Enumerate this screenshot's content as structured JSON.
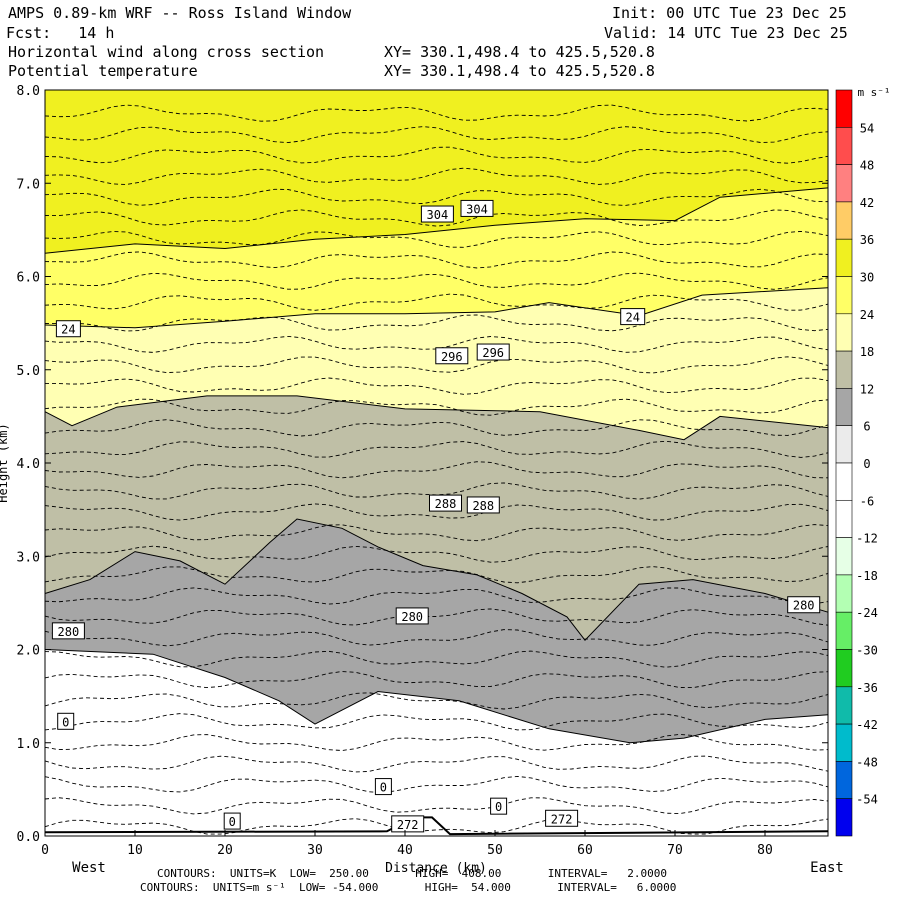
{
  "header": {
    "title": "AMPS 0.89-km WRF -- Ross Island Window",
    "init": "Init: 00 UTC Tue 23 Dec 25",
    "fcst": "Fcst:   14 h",
    "valid": "Valid: 14 UTC Tue 23 Dec 25",
    "field1": "Horizontal wind along cross section",
    "field1_xy": "XY= 330.1,498.4 to 425.5,520.8",
    "field2": "Potential temperature",
    "field2_xy": "XY= 330.1,498.4 to 425.5,520.8"
  },
  "footer": {
    "line1": "CONTOURS:  UNITS=K  LOW=  250.00       HIGH=  408.00       INTERVAL=   2.0000",
    "line2": "CONTOURS:  UNITS=m s⁻¹  LOW= -54.000       HIGH=  54.000       INTERVAL=   6.0000"
  },
  "chart_data": {
    "type": "heatmap",
    "title": "AMPS 0.89-km WRF -- Ross Island Window",
    "xlabel": "Distance (km)",
    "ylabel": "Height (km)",
    "x_left_label": "West",
    "x_right_label": "East",
    "xlim": [
      0,
      87
    ],
    "ylim": [
      0,
      8
    ],
    "x_ticks": [
      0,
      10,
      20,
      30,
      40,
      50,
      60,
      70,
      80
    ],
    "y_ticks": [
      "0.0",
      "1.0",
      "2.0",
      "3.0",
      "4.0",
      "5.0",
      "6.0",
      "7.0",
      "8.0"
    ],
    "colorbar": {
      "units": "m s⁻¹",
      "levels": [
        54,
        48,
        42,
        36,
        30,
        24,
        18,
        12,
        6,
        0,
        -6,
        -12,
        -18,
        -24,
        -30,
        -36,
        -42,
        -48,
        -54
      ],
      "colors": [
        "#ff0000",
        "#ff4d4d",
        "#ff8080",
        "#ffcc66",
        "#f0f020",
        "#ffff66",
        "#ffffb3",
        "#bfbfa6",
        "#a6a6a6",
        "#ebebeb",
        "#ffffff",
        "#ffffff",
        "#e6ffe6",
        "#b3ffb3",
        "#66ee66",
        "#20cc20",
        "#10bbaa",
        "#00bbcc",
        "#0066dd",
        "#0000ee"
      ]
    },
    "wind_layers": [
      {
        "level": "24-30 m s⁻¹",
        "color": "#ffff66",
        "boundary": [
          [
            0,
            6.25
          ],
          [
            10,
            6.35
          ],
          [
            20,
            6.3
          ],
          [
            30,
            6.4
          ],
          [
            40,
            6.45
          ],
          [
            50,
            6.55
          ],
          [
            60,
            6.62
          ],
          [
            70,
            6.6
          ],
          [
            75,
            6.85
          ],
          [
            87,
            6.95
          ]
        ]
      },
      {
        "level": "18-24 m s⁻¹",
        "color": "#ffffb3",
        "boundary": [
          [
            0,
            5.48
          ],
          [
            10,
            5.45
          ],
          [
            20,
            5.52
          ],
          [
            30,
            5.6
          ],
          [
            40,
            5.6
          ],
          [
            50,
            5.62
          ],
          [
            56,
            5.72
          ],
          [
            66,
            5.58
          ],
          [
            73,
            5.8
          ],
          [
            87,
            5.88
          ]
        ]
      },
      {
        "level": "12-18 m s⁻¹",
        "color": "#bfbfa6",
        "boundary": [
          [
            0,
            4.55
          ],
          [
            3,
            4.4
          ],
          [
            8,
            4.6
          ],
          [
            18,
            4.72
          ],
          [
            28,
            4.72
          ],
          [
            40,
            4.58
          ],
          [
            55,
            4.55
          ],
          [
            66,
            4.35
          ],
          [
            71,
            4.25
          ],
          [
            75,
            4.5
          ],
          [
            87,
            4.38
          ]
        ]
      },
      {
        "level": "6-12 m s⁻¹",
        "color": "#a6a6a6",
        "boundary": [
          [
            0,
            2.6
          ],
          [
            5,
            2.75
          ],
          [
            10,
            3.05
          ],
          [
            15,
            2.95
          ],
          [
            20,
            2.7
          ],
          [
            25,
            3.15
          ],
          [
            28,
            3.4
          ],
          [
            33,
            3.3
          ],
          [
            37,
            3.1
          ],
          [
            42,
            2.9
          ],
          [
            48,
            2.8
          ],
          [
            53,
            2.6
          ],
          [
            58,
            2.35
          ],
          [
            60,
            2.1
          ],
          [
            66,
            2.7
          ],
          [
            72,
            2.75
          ],
          [
            80,
            2.6
          ],
          [
            87,
            2.4
          ]
        ]
      },
      {
        "level": "0-6 m s⁻¹",
        "color": "#ebebeb",
        "boundary": [
          [
            0,
            2.0
          ],
          [
            12,
            1.95
          ],
          [
            20,
            1.7
          ],
          [
            26,
            1.45
          ],
          [
            30,
            1.2
          ],
          [
            37,
            1.55
          ],
          [
            46,
            1.45
          ],
          [
            56,
            1.15
          ],
          [
            65,
            1.0
          ],
          [
            71,
            1.05
          ],
          [
            80,
            1.25
          ],
          [
            87,
            1.3
          ]
        ]
      }
    ],
    "wind_contour_labels": [
      {
        "text": "24",
        "x": 2.6,
        "y": 5.44
      },
      {
        "text": "24",
        "x": 65.3,
        "y": 5.57
      },
      {
        "text": "280",
        "x": 2.6,
        "y": 2.2
      },
      {
        "text": "280",
        "x": 40.8,
        "y": 2.36
      },
      {
        "text": "280",
        "x": 84.3,
        "y": 2.48
      },
      {
        "text": "0",
        "x": 2.3,
        "y": 1.23
      },
      {
        "text": "0",
        "x": 37.6,
        "y": 0.53
      },
      {
        "text": "0",
        "x": 50.4,
        "y": 0.32
      },
      {
        "text": "0",
        "x": 20.8,
        "y": 0.16
      },
      {
        "text": "272",
        "x": 40.3,
        "y": 0.13
      },
      {
        "text": "272",
        "x": 57.4,
        "y": 0.19
      }
    ],
    "theta_contours": {
      "units": "K",
      "low": 250.0,
      "high": 408.0,
      "interval": 2.0
    },
    "theta_labels": [
      {
        "text": "304",
        "x": 43.6,
        "y": 6.67
      },
      {
        "text": "304",
        "x": 48.0,
        "y": 6.73
      },
      {
        "text": "296",
        "x": 45.2,
        "y": 5.15
      },
      {
        "text": "296",
        "x": 49.8,
        "y": 5.19
      },
      {
        "text": "288",
        "x": 44.5,
        "y": 3.57
      },
      {
        "text": "288",
        "x": 48.7,
        "y": 3.55
      }
    ]
  }
}
